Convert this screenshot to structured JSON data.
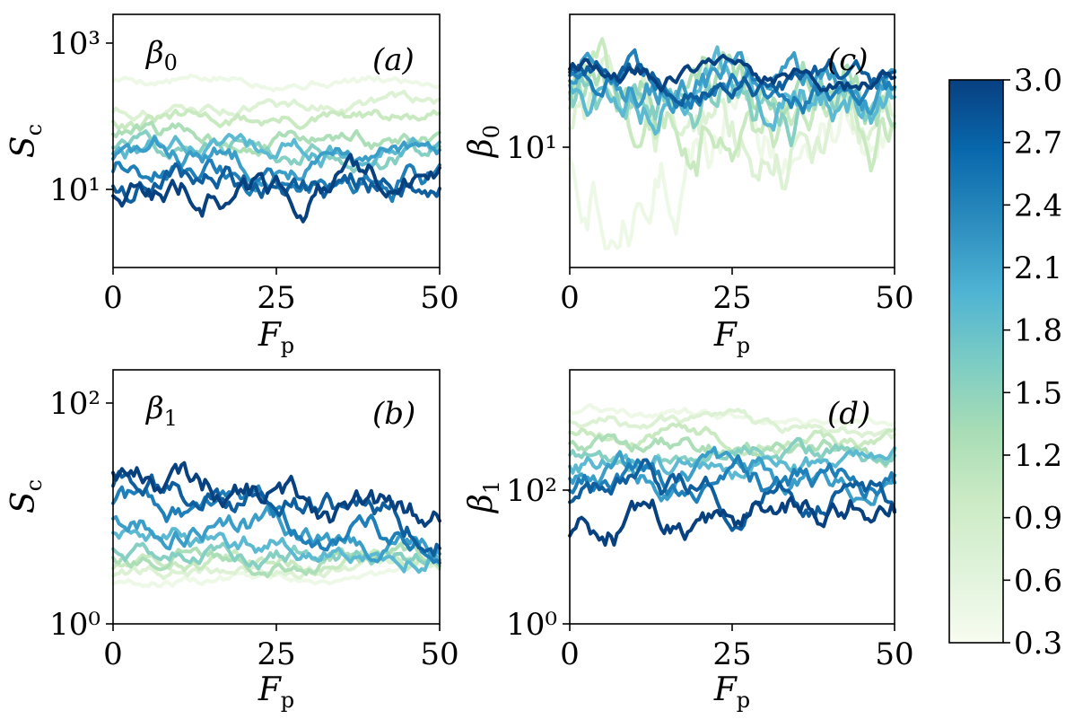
{
  "chart_data": [
    {
      "type": "line",
      "panel_label": "(a)",
      "inset_label": "β0",
      "xlabel": "Fp",
      "ylabel": "Sc",
      "xlim": [
        0,
        50
      ],
      "x_ticks": [
        "0",
        "25",
        "50"
      ],
      "yscale": "log",
      "ylim_log10": [
        0.0,
        3.5
      ],
      "y_ticks": [
        {
          "label": "10³",
          "value_log10": 3
        },
        {
          "label": "10¹",
          "value_log10": 1
        }
      ],
      "series_log10_start_end": [
        [
          2.6,
          2.58
        ],
        [
          2.18,
          2.3
        ],
        [
          2.05,
          2.02
        ],
        [
          1.88,
          1.72
        ],
        [
          1.7,
          1.62
        ],
        [
          1.62,
          1.6
        ],
        [
          1.55,
          1.45
        ],
        [
          1.38,
          1.3
        ],
        [
          1.18,
          1.2
        ],
        [
          1.05,
          1.15
        ]
      ]
    },
    {
      "type": "line",
      "panel_label": "(b)",
      "inset_label": "β1",
      "xlabel": "Fp",
      "ylabel": "Sc",
      "xlim": [
        0,
        50
      ],
      "x_ticks": [
        "0",
        "25",
        "50"
      ],
      "yscale": "log",
      "ylim_log10": [
        0.0,
        2.3
      ],
      "y_ticks": [
        {
          "label": "10²",
          "value_log10": 2
        },
        {
          "label": "10⁰",
          "value_log10": 0
        }
      ],
      "series_log10_start_end": [
        [
          0.38,
          0.46
        ],
        [
          0.45,
          0.52
        ],
        [
          0.52,
          0.58
        ],
        [
          0.62,
          0.62
        ],
        [
          0.7,
          0.66
        ],
        [
          0.85,
          0.7
        ],
        [
          0.98,
          0.74
        ],
        [
          1.12,
          0.8
        ],
        [
          1.28,
          0.86
        ],
        [
          1.4,
          0.9
        ]
      ]
    },
    {
      "type": "line",
      "panel_label": "(c)",
      "inset_label": "",
      "xlabel": "Fp",
      "ylabel": "β0",
      "xlim": [
        0,
        50
      ],
      "x_ticks": [
        "0",
        "25",
        "50"
      ],
      "yscale": "log",
      "ylim_log10": [
        0.0,
        2.1
      ],
      "y_ticks": [
        {
          "label": "10¹",
          "value_log10": 1
        }
      ],
      "series_log10_start_end": [
        [
          0.98,
          1.1
        ],
        [
          1.22,
          1.18
        ],
        [
          1.38,
          1.25
        ],
        [
          1.45,
          1.3
        ],
        [
          1.5,
          1.36
        ],
        [
          1.55,
          1.35
        ],
        [
          1.58,
          1.42
        ],
        [
          1.62,
          1.48
        ],
        [
          1.64,
          1.5
        ],
        [
          1.66,
          1.52
        ]
      ]
    },
    {
      "type": "line",
      "panel_label": "(d)",
      "inset_label": "",
      "xlabel": "Fp",
      "ylabel": "β1",
      "xlim": [
        0,
        50
      ],
      "x_ticks": [
        "0",
        "25",
        "50"
      ],
      "yscale": "log",
      "ylim_log10": [
        0.0,
        3.8
      ],
      "y_ticks": [
        {
          "label": "10²",
          "value_log10": 2
        },
        {
          "label": "10⁰",
          "value_log10": 0
        }
      ],
      "series_log10_start_end": [
        [
          3.2,
          3.0
        ],
        [
          3.05,
          2.85
        ],
        [
          2.88,
          2.7
        ],
        [
          2.72,
          2.58
        ],
        [
          2.55,
          2.45
        ],
        [
          2.38,
          2.3
        ],
        [
          2.2,
          2.15
        ],
        [
          2.02,
          2.05
        ],
        [
          1.85,
          1.95
        ],
        [
          1.35,
          1.95
        ]
      ]
    }
  ],
  "colorbar": {
    "tick_labels": [
      "3.0",
      "2.7",
      "2.4",
      "2.1",
      "1.8",
      "1.5",
      "1.2",
      "0.9",
      "0.6",
      "0.3"
    ],
    "range": [
      0.3,
      3.0
    ],
    "colors": [
      "#f7fcf0",
      "#e0f3db",
      "#ccebc5",
      "#a8ddb5",
      "#7bccc4",
      "#4eb3d3",
      "#2b8cbe",
      "#0868ac",
      "#084081"
    ],
    "series_colors": [
      "#eef8e6",
      "#ddf1d4",
      "#c9eac1",
      "#acdfb8",
      "#86cfc3",
      "#5bb9d2",
      "#3a9ec9",
      "#1f7fb8",
      "#0f5f9f",
      "#08417f"
    ]
  }
}
